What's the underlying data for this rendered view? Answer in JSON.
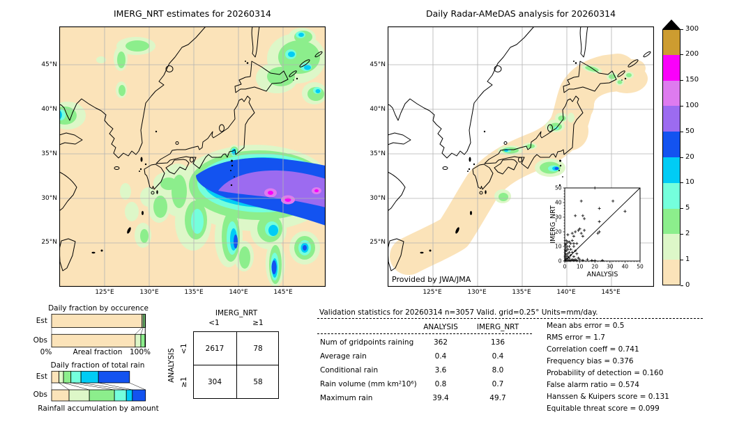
{
  "palette": {
    "levels": [
      0,
      1,
      2,
      5,
      10,
      20,
      50,
      100,
      150,
      200,
      300
    ],
    "colors": [
      "#FBE3B9",
      "#DDF7C8",
      "#8CEE8C",
      "#74FFDC",
      "#00CCF5",
      "#1353F0",
      "#9C6BF0",
      "#DE7BEF",
      "#FA00FA",
      "#CD9C30"
    ],
    "over_color": "#000000",
    "grid_color": "#b3b3b3"
  },
  "left_map": {
    "title": "IMERG_NRT estimates for 20260314",
    "x_ticks": [
      "125°E",
      "130°E",
      "135°E",
      "140°E",
      "145°E"
    ],
    "y_ticks": [
      "45°N",
      "40°N",
      "35°N",
      "30°N",
      "25°N"
    ]
  },
  "right_map": {
    "title": "Daily Radar-AMeDAS analysis for 20260314",
    "x_ticks": [
      "125°E",
      "130°E",
      "135°E",
      "140°E",
      "145°E"
    ],
    "y_ticks": [
      "45°N",
      "40°N",
      "35°N",
      "30°N",
      "25°N"
    ],
    "credit": "Provided by JWA/JMA"
  },
  "inset": {
    "xlabel": "ANALYSIS",
    "ylabel": "IMERG_NRT",
    "x_ticks": [
      "0",
      "10",
      "20",
      "30",
      "40",
      "50"
    ],
    "y_ticks": [
      "0",
      "10",
      "20",
      "30",
      "40",
      "50"
    ]
  },
  "colorbar": {
    "tick_labels": [
      "0",
      "1",
      "2",
      "5",
      "10",
      "20",
      "50",
      "100",
      "150",
      "200",
      "300"
    ]
  },
  "occurrence_chart": {
    "title": "Daily fraction by occurence",
    "row_labels": [
      "Est",
      "Obs"
    ],
    "axis_left": "0%",
    "axis_center": "Areal fraction",
    "axis_right": "100%"
  },
  "totalrain_chart": {
    "title": "Daily fraction of total rain",
    "row_labels": [
      "Est",
      "Obs"
    ],
    "xlabel": "Rainfall accumulation by amount"
  },
  "contingency": {
    "col_group": "IMERG_NRT",
    "row_group": "ANALYSIS",
    "col_labels": [
      "<1",
      "≥1"
    ],
    "row_labels": [
      "<1",
      "≥1"
    ]
  },
  "validation": {
    "title": "Validation statistics for 20260314  n=3057 Valid. grid=0.25° Units=mm/day.",
    "columns": [
      "ANALYSIS",
      "IMERG_NRT"
    ]
  },
  "chart_data": [
    {
      "type": "heatmap",
      "title": "IMERG_NRT estimates for 20260314",
      "x_range": [
        "120°E",
        "150°E"
      ],
      "y_range": [
        "20°N",
        "49.5°N"
      ],
      "units": "mm/day",
      "levels": [
        0,
        1,
        2,
        5,
        10,
        20,
        50,
        100,
        150,
        200,
        300
      ],
      "notes": "Entire domain shaded 0-1 mm (peach). Large rain system SE of Japan: 20-50 mm band ~26-35N/135-150E with 50-150 mm purple core and two 150-200 mm magenta spots (~143.8E/30.6N, ~145.8E/29.8N); scattered 1-20 mm cells S and SW of Japan, NE of Hokkaido, NW continent near 127E/46N, China coast ~121E/40N, and a 10-20 mm cell at Tokyo Bay."
    },
    {
      "type": "heatmap",
      "title": "Daily Radar-AMeDAS analysis for 20260314",
      "x_range": [
        "120°E",
        "150°E"
      ],
      "y_range": [
        "20°N",
        "49.5°N"
      ],
      "units": "mm/day",
      "notes": "White outside radar range; 0-1 mm (peach) coverage band along the Japanese archipelago from Ryukyu to E Hokkaido; 2-10 mm cells along the San-in and Niigata coasts, 20-50 mm core S of Tokai coast (~138.5E/33.4N), light 1-5 mm cells on N and E Hokkaido."
    },
    {
      "type": "bar",
      "stacked": true,
      "orientation": "horizontal",
      "title": "Daily fraction by occurence",
      "categories": [
        "Est",
        "Obs"
      ],
      "xlabel": "Areal fraction",
      "xlim": [
        "0%",
        "100%"
      ],
      "series": [
        {
          "name": "0-1 mm",
          "color_idx": 0,
          "values": [
            96.3,
            89.0
          ]
        },
        {
          "name": "1-2 mm",
          "color_idx": 1,
          "values": [
            1.2,
            6.0
          ]
        },
        {
          "name": "2-5 mm",
          "color_idx": 2,
          "values": [
            2.0,
            4.5
          ]
        },
        {
          "name": "5-10 mm",
          "color_idx": 3,
          "values": [
            0.5,
            0.5
          ]
        }
      ]
    },
    {
      "type": "bar",
      "stacked": true,
      "orientation": "horizontal",
      "title": "Daily fraction of total rain",
      "categories": [
        "Est",
        "Obs"
      ],
      "xlabel": "Rainfall accumulation by amount",
      "est_bar_relative_length": 0.83,
      "series": [
        {
          "name": "0-1 mm",
          "color_idx": 0,
          "values": [
            9.5,
            18.6
          ]
        },
        {
          "name": "1-2 mm",
          "color_idx": 1,
          "values": [
            5.8,
            21.6
          ]
        },
        {
          "name": "2-5 mm",
          "color_idx": 2,
          "values": [
            9.5,
            26.7
          ]
        },
        {
          "name": "5-10 mm",
          "color_idx": 3,
          "values": [
            12.9,
            12.7
          ]
        },
        {
          "name": "10-20 mm",
          "color_idx": 4,
          "values": [
            22.4,
            6.4
          ]
        },
        {
          "name": "20-50 mm",
          "color_idx": 5,
          "values": [
            39.9,
            14.0
          ]
        }
      ]
    },
    {
      "type": "table",
      "title": "Contingency table (gridpoints), ANALYSIS rows vs IMERG_NRT columns",
      "columns": [
        "",
        "<1",
        "≥1"
      ],
      "rows": [
        [
          "<1",
          "2617",
          "78"
        ],
        [
          "≥1",
          "304",
          "58"
        ]
      ]
    },
    {
      "type": "table",
      "title": "Validation statistics for 20260314  n=3057 Valid. grid=0.25° Units=mm/day.",
      "columns": [
        "",
        "ANALYSIS",
        "IMERG_NRT"
      ],
      "rows": [
        [
          "Num of gridpoints raining",
          "362",
          "136"
        ],
        [
          "Average rain",
          "0.4",
          "0.4"
        ],
        [
          "Conditional rain",
          "3.6",
          "8.0"
        ],
        [
          "Rain volume (mm km²10⁶)",
          "0.8",
          "0.7"
        ],
        [
          "Maximum rain",
          "39.4",
          "49.7"
        ]
      ]
    },
    {
      "type": "scatter",
      "xlabel": "ANALYSIS",
      "ylabel": "IMERG_NRT",
      "xlim": [
        0,
        50
      ],
      "ylim": [
        0,
        50
      ],
      "diagonal": true,
      "points": [
        [
          20,
          50
        ],
        [
          11,
          41
        ],
        [
          32,
          41
        ],
        [
          23,
          36
        ],
        [
          40,
          34
        ],
        [
          7,
          31
        ],
        [
          12,
          31
        ],
        [
          13,
          29
        ],
        [
          23,
          27
        ],
        [
          23,
          20
        ],
        [
          13,
          21
        ],
        [
          10,
          22
        ],
        [
          11,
          19
        ],
        [
          22,
          19
        ],
        [
          5,
          19
        ],
        [
          2,
          18
        ],
        [
          7,
          20
        ],
        [
          9,
          21
        ],
        [
          12,
          17
        ],
        [
          6,
          17
        ],
        [
          5,
          14
        ],
        [
          1,
          14
        ],
        [
          3,
          13
        ],
        [
          2,
          13
        ],
        [
          8,
          12
        ],
        [
          6,
          12
        ],
        [
          4,
          12
        ],
        [
          0.5,
          11
        ],
        [
          1,
          12
        ],
        [
          1.5,
          10
        ],
        [
          3,
          10
        ],
        [
          6,
          10
        ],
        [
          0.8,
          9
        ],
        [
          2,
          8
        ],
        [
          4,
          8
        ],
        [
          8,
          5
        ],
        [
          1,
          7
        ],
        [
          0.5,
          7
        ],
        [
          7,
          7
        ],
        [
          5,
          6
        ],
        [
          3,
          6
        ],
        [
          2,
          5
        ],
        [
          0.5,
          5
        ],
        [
          4,
          4
        ],
        [
          1,
          4
        ],
        [
          6,
          3
        ],
        [
          0.3,
          3
        ],
        [
          2,
          3
        ],
        [
          3,
          2
        ],
        [
          9,
          2
        ],
        [
          1,
          2
        ],
        [
          5,
          1
        ],
        [
          7,
          1
        ],
        [
          10,
          1
        ],
        [
          15,
          1
        ],
        [
          0.5,
          1
        ],
        [
          2,
          1
        ],
        [
          4,
          0.5
        ],
        [
          6,
          0.5
        ],
        [
          8,
          0.4
        ],
        [
          12,
          0.5
        ],
        [
          18,
          0.4
        ],
        [
          20,
          0.3
        ],
        [
          3,
          0.4
        ],
        [
          1,
          0.3
        ],
        [
          0.3,
          0.2
        ],
        [
          25,
          0.4
        ]
      ]
    },
    {
      "type": "table",
      "title": "Skill scores",
      "columns": [
        "score",
        "value"
      ],
      "rows": [
        [
          "Mean abs error",
          "0.5"
        ],
        [
          "RMS error",
          "1.7"
        ],
        [
          "Correlation coeff",
          "0.741"
        ],
        [
          "Frequency bias",
          "0.376"
        ],
        [
          "Probability of detection",
          "0.160"
        ],
        [
          "False alarm ratio",
          "0.574"
        ],
        [
          "Hanssen & Kuipers score",
          "0.131"
        ],
        [
          "Equitable threat score",
          "0.099"
        ]
      ]
    }
  ]
}
